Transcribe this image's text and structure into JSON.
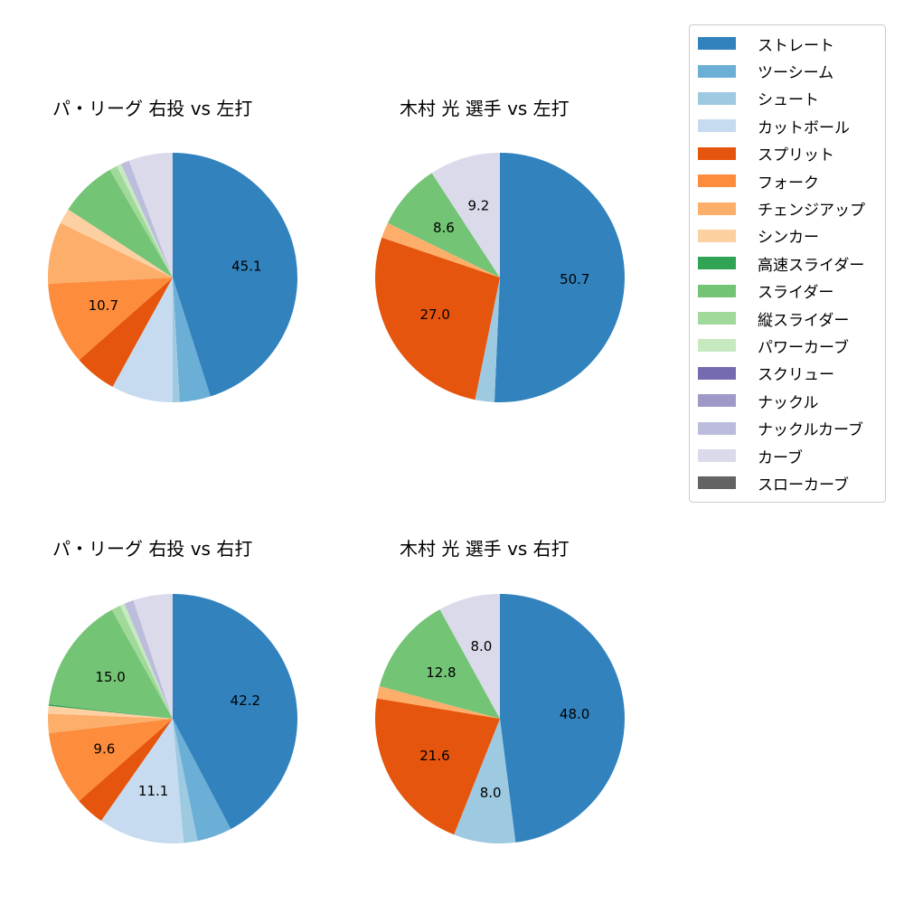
{
  "colors": {
    "ストレート": "#3182bd",
    "ツーシーム": "#6baed6",
    "シュート": "#9ecae1",
    "カットボール": "#c6dbef",
    "スプリット": "#e6550d",
    "フォーク": "#fd8d3c",
    "チェンジアップ": "#fdae6b",
    "シンカー": "#fdd0a2",
    "高速スライダー": "#31a354",
    "スライダー": "#74c476",
    "縦スライダー": "#a1d99b",
    "パワーカーブ": "#c7e9c0",
    "スクリュー": "#756bb1",
    "ナックル": "#9e9ac8",
    "ナックルカーブ": "#bcbddc",
    "カーブ": "#dadaeb",
    "スローカーブ": "#636363"
  },
  "legend": {
    "items": [
      "ストレート",
      "ツーシーム",
      "シュート",
      "カットボール",
      "スプリット",
      "フォーク",
      "チェンジアップ",
      "シンカー",
      "高速スライダー",
      "スライダー",
      "縦スライダー",
      "パワーカーブ",
      "スクリュー",
      "ナックル",
      "ナックルカーブ",
      "カーブ",
      "スローカーブ"
    ]
  },
  "chart_data": [
    {
      "type": "pie",
      "title": "パ・リーグ 右投 vs 左打",
      "categories": [
        "ストレート",
        "ツーシーム",
        "シュート",
        "カットボール",
        "スプリット",
        "フォーク",
        "チェンジアップ",
        "シンカー",
        "スライダー",
        "縦スライダー",
        "パワーカーブ",
        "ナックルカーブ",
        "カーブ"
      ],
      "values": [
        45.1,
        4.0,
        0.9,
        8.0,
        5.5,
        10.7,
        8.0,
        2.0,
        7.4,
        1.0,
        0.6,
        1.1,
        5.7
      ],
      "labels_shown": {
        "ストレート": "45.1",
        "フォーク": "10.7"
      },
      "start_angle": 90,
      "direction": "clockwise"
    },
    {
      "type": "pie",
      "title": "木村 光 選手 vs 左打",
      "categories": [
        "ストレート",
        "シュート",
        "スプリット",
        "チェンジアップ",
        "スライダー",
        "カーブ"
      ],
      "values": [
        50.7,
        2.5,
        27.0,
        2.0,
        8.6,
        9.2
      ],
      "labels_shown": {
        "ストレート": "50.7",
        "スプリット": "27.0",
        "スライダー": "8.6",
        "カーブ": "9.2"
      },
      "start_angle": 90,
      "direction": "clockwise"
    },
    {
      "type": "pie",
      "title": "パ・リーグ 右投 vs 右打",
      "categories": [
        "ストレート",
        "ツーシーム",
        "シュート",
        "カットボール",
        "スプリット",
        "フォーク",
        "チェンジアップ",
        "シンカー",
        "高速スライダー",
        "スライダー",
        "縦スライダー",
        "パワーカーブ",
        "ナックルカーブ",
        "カーブ"
      ],
      "values": [
        42.2,
        4.5,
        1.8,
        11.1,
        3.8,
        9.6,
        2.5,
        1.0,
        0.2,
        15.0,
        1.2,
        0.6,
        1.2,
        5.1
      ],
      "labels_shown": {
        "ストレート": "42.2",
        "カットボール": "11.1",
        "フォーク": "9.6",
        "スライダー": "15.0"
      },
      "start_angle": 90,
      "direction": "clockwise"
    },
    {
      "type": "pie",
      "title": "木村 光 選手 vs 右打",
      "categories": [
        "ストレート",
        "シュート",
        "スプリット",
        "チェンジアップ",
        "スライダー",
        "カーブ"
      ],
      "values": [
        48.0,
        8.0,
        21.6,
        1.6,
        12.8,
        8.0
      ],
      "labels_shown": {
        "ストレート": "48.0",
        "シュート": "8.0",
        "スプリット": "21.6",
        "スライダー": "12.8",
        "カーブ": "8.0"
      },
      "start_angle": 90,
      "direction": "clockwise"
    }
  ]
}
